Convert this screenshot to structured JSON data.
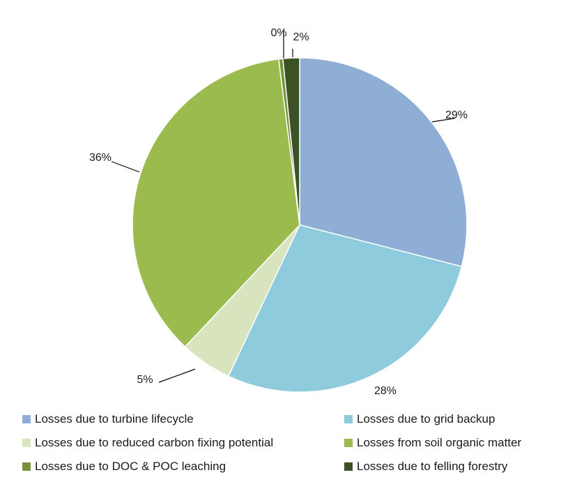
{
  "chart_data": {
    "type": "pie",
    "title": "",
    "slices": [
      {
        "label": "Losses due to turbine lifecycle",
        "value": 29,
        "display": "29%",
        "color": "#8eaed6"
      },
      {
        "label": "Losses due to grid backup",
        "value": 28,
        "display": "28%",
        "color": "#8ecbdc"
      },
      {
        "label": "Losses due to reduced carbon fixing potential",
        "value": 5,
        "display": "5%",
        "color": "#d7e4bd"
      },
      {
        "label": "Losses from soil organic matter",
        "value": 36,
        "display": "36%",
        "color": "#9bbb4f"
      },
      {
        "label": "Losses due to DOC & POC leaching",
        "value": 0.4,
        "display": "0%",
        "color": "#76923c"
      },
      {
        "label": "Losses due to felling forestry",
        "value": 1.6,
        "display": "2%",
        "color": "#3c5224"
      }
    ],
    "legend_position": "bottom"
  }
}
